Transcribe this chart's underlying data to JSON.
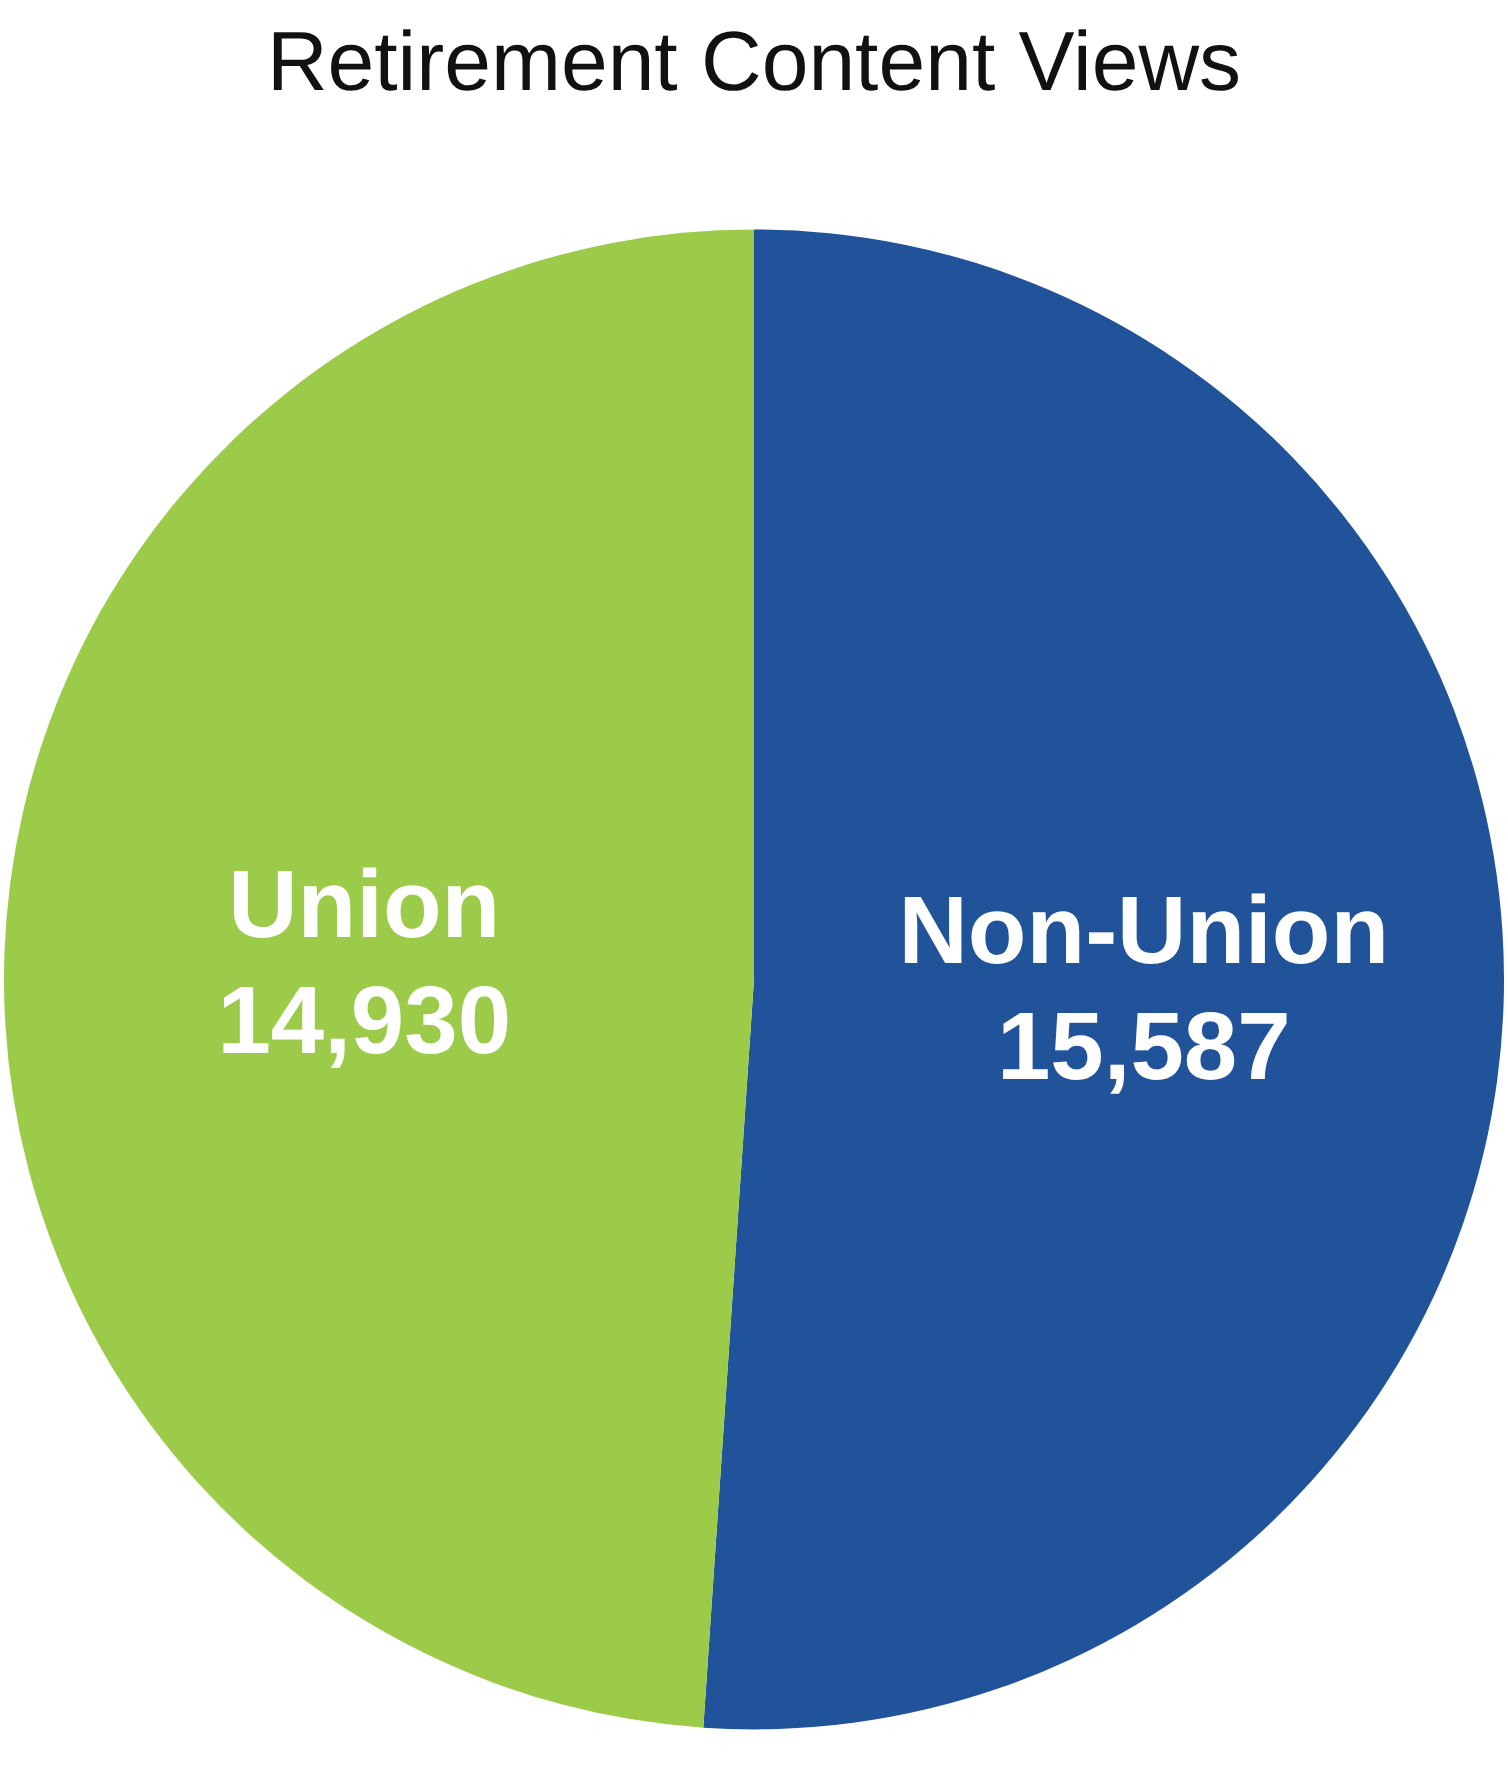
{
  "chart_data": {
    "type": "pie",
    "title": "Retirement Content Views",
    "categories": [
      "Non-Union",
      "Union"
    ],
    "values": [
      15587,
      14930
    ],
    "colors": [
      "#21539a",
      "#9ccb4a"
    ],
    "value_labels": [
      "15,587",
      "14,930"
    ],
    "legend": false
  }
}
